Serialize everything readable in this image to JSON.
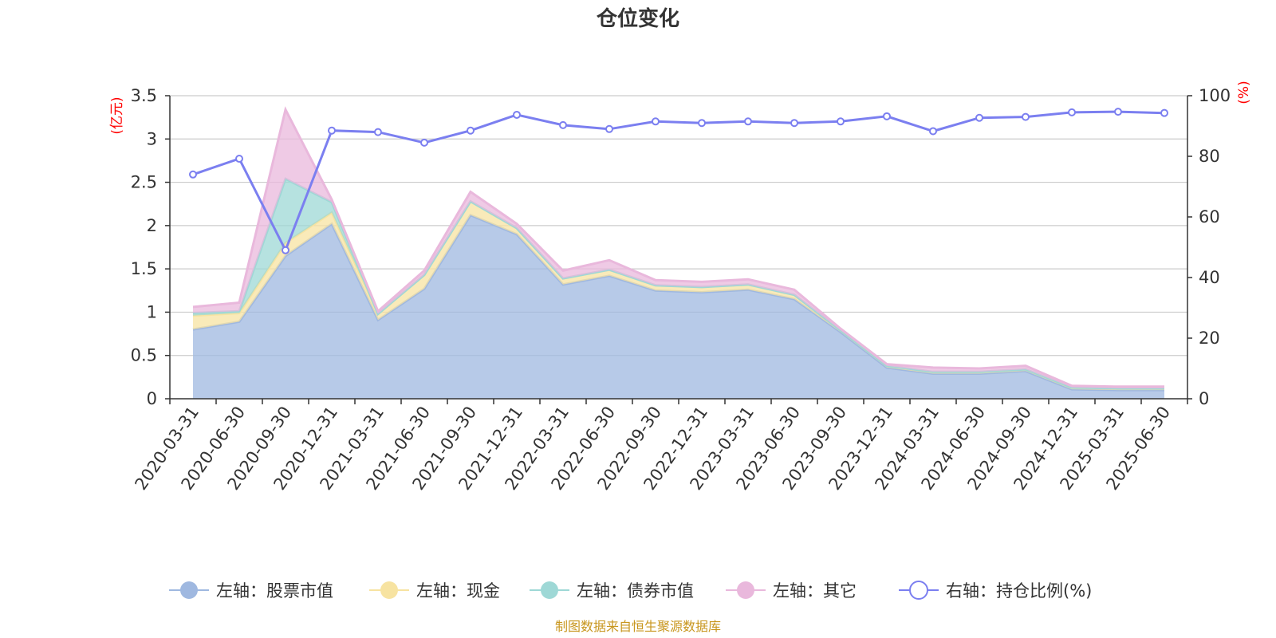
{
  "chart_data": {
    "type": "area",
    "title": "仓位变化",
    "left_unit": "(亿元)",
    "right_unit": "(%)",
    "x": [
      "2020-03-31",
      "2020-06-30",
      "2020-09-30",
      "2020-12-31",
      "2021-03-31",
      "2021-06-30",
      "2021-09-30",
      "2021-12-31",
      "2022-03-31",
      "2022-06-30",
      "2022-09-30",
      "2022-12-31",
      "2023-03-31",
      "2023-06-30",
      "2023-09-30",
      "2023-12-31",
      "2024-03-31",
      "2024-06-30",
      "2024-09-30",
      "2024-12-31",
      "2025-03-31",
      "2025-06-30"
    ],
    "y_left_ticks": [
      "0",
      "0.5",
      "1",
      "1.5",
      "2",
      "2.5",
      "3",
      "3.5"
    ],
    "y_right_ticks": [
      "0",
      "20",
      "40",
      "60",
      "80",
      "100"
    ],
    "y_left_range": [
      0,
      3.5
    ],
    "y_right_range": [
      0,
      100
    ],
    "stacked": true,
    "series": [
      {
        "name": "左轴：股票市值",
        "axis": "left",
        "color": "#9fb8e0",
        "values": [
          0.8,
          0.89,
          1.65,
          2.02,
          0.91,
          1.27,
          2.12,
          1.9,
          1.32,
          1.42,
          1.25,
          1.23,
          1.26,
          1.15,
          0.77,
          0.36,
          0.29,
          0.29,
          0.32,
          0.11,
          0.1,
          0.1
        ]
      },
      {
        "name": "左轴：现金",
        "axis": "left",
        "color": "#f7e3a1",
        "values": [
          0.16,
          0.1,
          0.15,
          0.13,
          0.07,
          0.16,
          0.16,
          0.07,
          0.07,
          0.07,
          0.06,
          0.06,
          0.06,
          0.05,
          0.02,
          0.02,
          0.02,
          0.02,
          0.02,
          0.02,
          0.02,
          0.02
        ]
      },
      {
        "name": "左轴：债券市值",
        "axis": "left",
        "color": "#9ed8d6",
        "values": [
          0.03,
          0.02,
          0.74,
          0.12,
          0.0,
          0.0,
          0.0,
          0.0,
          0.0,
          0.0,
          0.0,
          0.0,
          0.0,
          0.0,
          0.0,
          0.0,
          0.0,
          0.0,
          0.0,
          0.0,
          0.0,
          0.0
        ]
      },
      {
        "name": "左轴：其它",
        "axis": "left",
        "color": "#e9b8dc",
        "values": [
          0.07,
          0.1,
          0.8,
          0.03,
          0.03,
          0.05,
          0.11,
          0.05,
          0.09,
          0.11,
          0.06,
          0.06,
          0.06,
          0.06,
          0.02,
          0.02,
          0.05,
          0.04,
          0.04,
          0.02,
          0.02,
          0.02
        ]
      },
      {
        "name": "右轴：持仓比例(%)",
        "axis": "right",
        "color": "#7b7ff0",
        "type": "line",
        "values": [
          74.0,
          79.2,
          49.0,
          88.5,
          88.0,
          84.5,
          88.5,
          93.7,
          90.3,
          89.0,
          91.5,
          91.0,
          91.5,
          91.0,
          91.5,
          93.2,
          88.3,
          92.7,
          93.0,
          94.5,
          94.7,
          94.3
        ]
      }
    ],
    "legend_position": "bottom",
    "grid": true
  },
  "footer": {
    "source": "制图数据来自恒生聚源数据库"
  }
}
